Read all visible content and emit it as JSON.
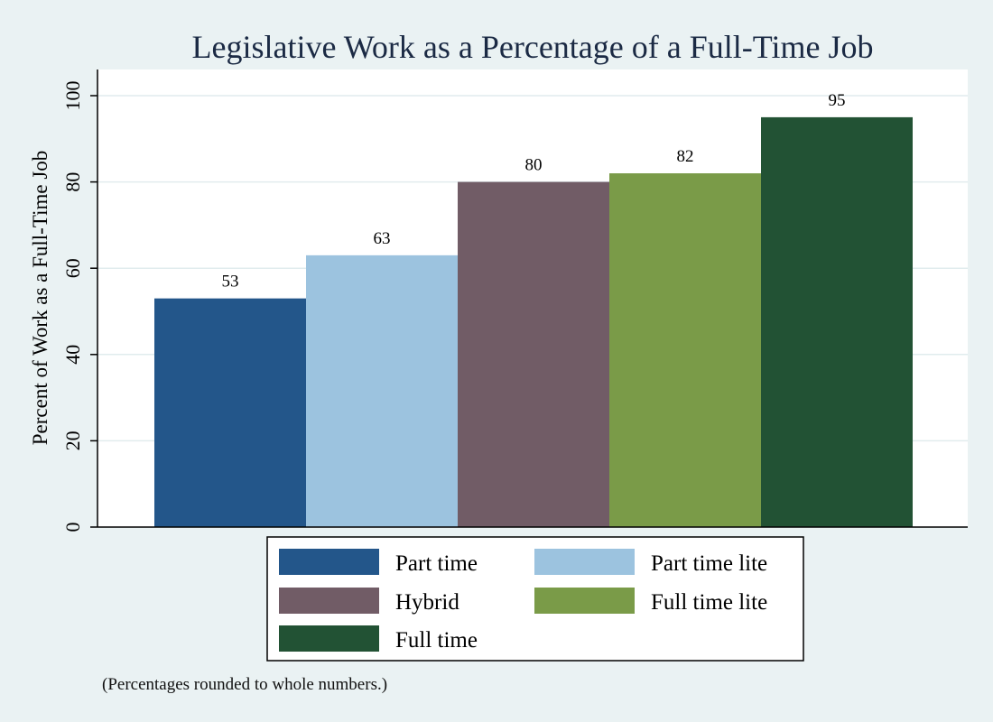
{
  "chart_data": {
    "type": "bar",
    "title": "Legislative Work as a Percentage of a Full-Time Job",
    "ylabel": "Percent of Work as a Full-Time Job",
    "xlabel": "",
    "ylim": [
      0,
      100
    ],
    "yticks": [
      0,
      20,
      40,
      60,
      80,
      100
    ],
    "grid": true,
    "legend_position": "bottom",
    "categories": [
      "Part time",
      "Part time lite",
      "Hybrid",
      "Full time lite",
      "Full time"
    ],
    "values": [
      53,
      63,
      80,
      82,
      95
    ],
    "value_labels": [
      "53",
      "63",
      "80",
      "82",
      "95"
    ],
    "colors": [
      "#23568a",
      "#9cc3df",
      "#715c66",
      "#7a9b48",
      "#225234"
    ],
    "note": "(Percentages rounded to whole numbers.)"
  }
}
